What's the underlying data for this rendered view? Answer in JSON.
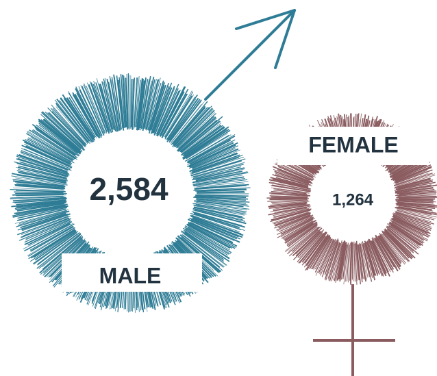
{
  "male": {
    "value": "2,584",
    "label": "MALE"
  },
  "female": {
    "value": "1,264",
    "label": "FEMALE"
  }
}
